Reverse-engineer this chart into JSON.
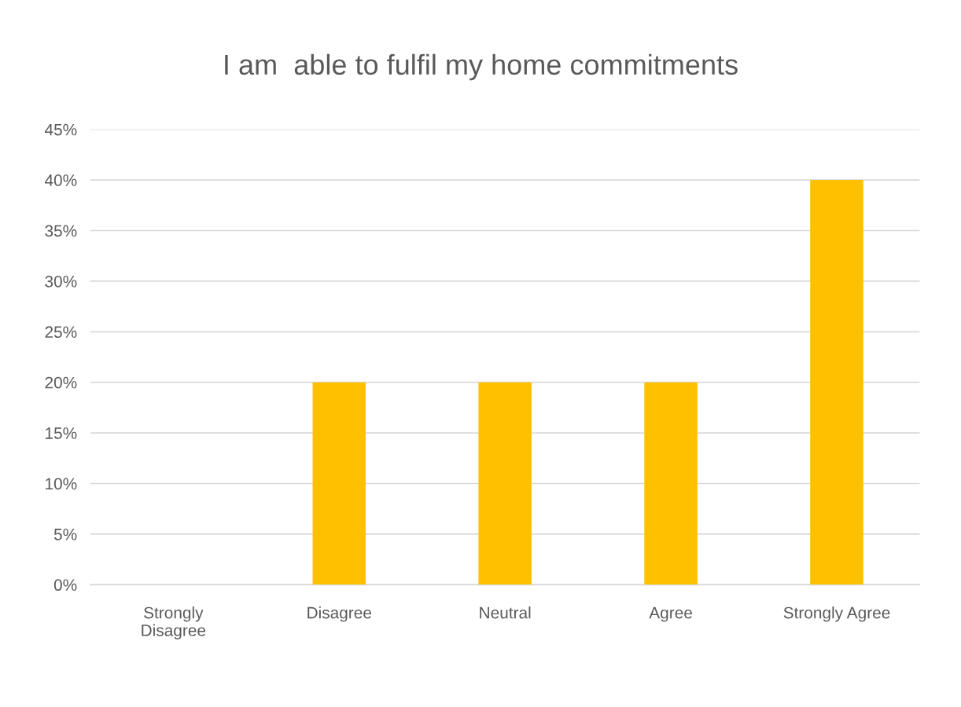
{
  "chart_data": {
    "type": "bar",
    "title": "I am  able to fulfil my home commitments",
    "categories": [
      "Strongly\nDisagree",
      "Disagree",
      "Neutral",
      "Agree",
      "Strongly Agree"
    ],
    "values": [
      0,
      20,
      20,
      20,
      40
    ],
    "color": "#ffc000",
    "ylim": [
      0,
      45
    ],
    "yticks": [
      {
        "value": 0,
        "label": "0%"
      },
      {
        "value": 5,
        "label": "5%"
      },
      {
        "value": 10,
        "label": "10%"
      },
      {
        "value": 15,
        "label": "15%"
      },
      {
        "value": 20,
        "label": "20%"
      },
      {
        "value": 25,
        "label": "25%"
      },
      {
        "value": 30,
        "label": "30%"
      },
      {
        "value": 35,
        "label": "35%"
      },
      {
        "value": 40,
        "label": "40%"
      },
      {
        "value": 45,
        "label": "45%"
      }
    ],
    "grid": "y",
    "legend": false
  }
}
